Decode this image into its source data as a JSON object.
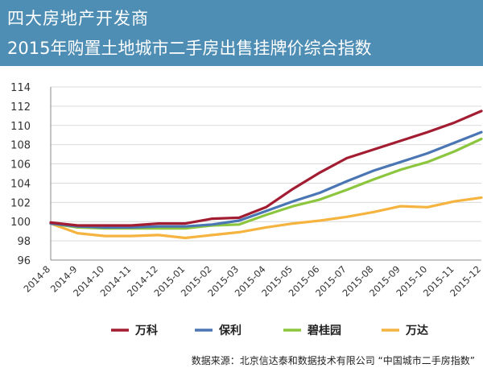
{
  "title": {
    "line1": "四大房地产开发商",
    "line2": "2015年购置土地城市二手房出售挂牌价综合指数"
  },
  "source": "数据来源：北京信达泰和数据技术有限公司 “中国城市二手房指数”",
  "chart_data": {
    "type": "line",
    "categories": [
      "2014-8",
      "2014-9",
      "2014-10",
      "2014-11",
      "2014-12",
      "2015-01",
      "2015-02",
      "2015-03",
      "2015-04",
      "2015-05",
      "2015-06",
      "2015-07",
      "2015-08",
      "2015-09",
      "2015-10",
      "2015-11",
      "2015-12"
    ],
    "ylim": [
      96,
      114
    ],
    "yticks": [
      96,
      98,
      100,
      102,
      104,
      106,
      108,
      110,
      112,
      114
    ],
    "grid": true,
    "legend_position": "bottom",
    "series": [
      {
        "name": "万科",
        "color": "#a31d32",
        "values": [
          99.9,
          99.6,
          99.6,
          99.6,
          99.8,
          99.8,
          100.3,
          100.4,
          101.5,
          103.4,
          105.1,
          106.6,
          107.5,
          108.4,
          109.3,
          110.3,
          111.5
        ]
      },
      {
        "name": "保利",
        "color": "#4a77b4",
        "values": [
          99.8,
          99.5,
          99.4,
          99.4,
          99.5,
          99.5,
          99.7,
          100.1,
          101.1,
          102.1,
          103.0,
          104.2,
          105.3,
          106.2,
          107.1,
          108.2,
          109.3
        ]
      },
      {
        "name": "碧桂园",
        "color": "#8cc63f",
        "values": [
          99.8,
          99.4,
          99.3,
          99.3,
          99.3,
          99.3,
          99.6,
          99.7,
          100.7,
          101.6,
          102.3,
          103.3,
          104.4,
          105.4,
          106.2,
          107.3,
          108.6
        ]
      },
      {
        "name": "万达",
        "color": "#f5b440",
        "values": [
          99.8,
          98.8,
          98.5,
          98.5,
          98.6,
          98.3,
          98.6,
          98.9,
          99.4,
          99.8,
          100.1,
          100.5,
          101.0,
          101.6,
          101.5,
          102.1,
          102.5
        ]
      }
    ]
  }
}
